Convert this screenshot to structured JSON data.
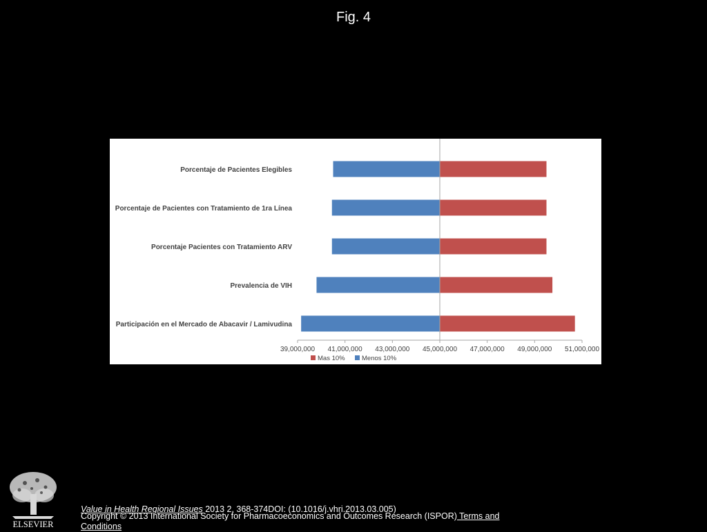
{
  "figure": {
    "title": "Fig. 4"
  },
  "colors": {
    "bar_low": "#4f81bd",
    "bar_high": "#c0504d",
    "background": "#000000",
    "panel": "#ffffff"
  },
  "chart_data": {
    "type": "bar",
    "orientation": "horizontal",
    "style": "tornado",
    "base_value": 45000000,
    "categories": [
      "Porcentaje de Pacientes Elegibles",
      "Porcentaje de Pacientes con Tratamiento de 1ra Línea",
      "Porcentaje Pacientes con Tratamiento ARV",
      "Prevalencia de VIH",
      "Participación en el Mercado de Abacavir / Lamivudina"
    ],
    "series": [
      {
        "name": "Mas 10%",
        "color": "#c0504d",
        "values": [
          49500000,
          49500000,
          49500000,
          49750000,
          50700000
        ]
      },
      {
        "name": "Menos 10%",
        "color": "#4f81bd",
        "values": [
          40500000,
          40450000,
          40450000,
          39800000,
          39150000
        ]
      }
    ],
    "xlim": [
      39000000,
      51000000
    ],
    "xticks": [
      "39,000,000",
      "41,000,000",
      "43,000,000",
      "45,000,000",
      "47,000,000",
      "49,000,000",
      "51,000,000"
    ],
    "xtick_values": [
      39000000,
      41000000,
      43000000,
      45000000,
      47000000,
      49000000,
      51000000
    ],
    "legend_position": "bottom",
    "grid": false
  },
  "footer": {
    "journal": "Value in Health Regional Issues",
    "citation": " 2013 2, 368-374DOI: (10.1016/j.vhri.2013.03.005)",
    "copyright": "Copyright © 2013 International Society for Pharmacoeconomics and Outcomes Research (ISPOR)",
    "terms_link": " Terms and Conditions"
  },
  "logo": {
    "text": "ELSEVIER"
  }
}
